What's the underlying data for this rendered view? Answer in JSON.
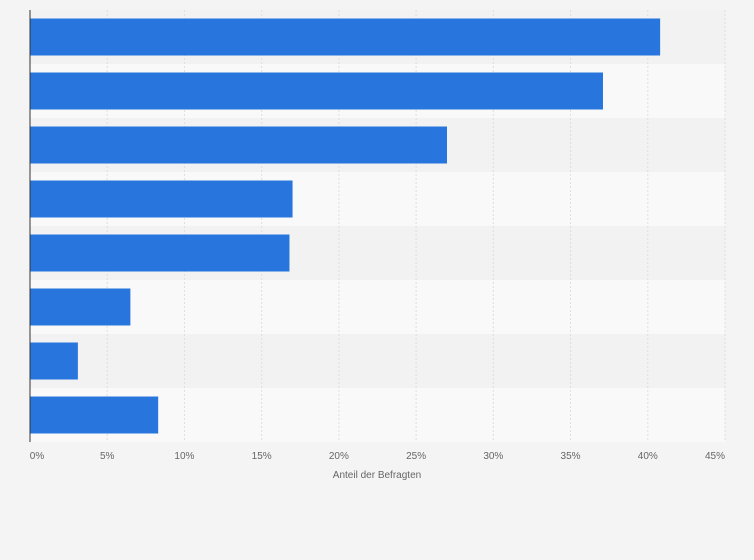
{
  "chart_data": {
    "type": "bar",
    "orientation": "horizontal",
    "categories": [
      "",
      "",
      "",
      "",
      "",
      "",
      "",
      ""
    ],
    "values": [
      40.8,
      37.1,
      27.0,
      17.0,
      16.8,
      6.5,
      3.1,
      8.3
    ],
    "xlabel": "Anteil der Befragten",
    "ylabel": "",
    "xlim": [
      0,
      45
    ],
    "ticks": [
      0,
      5,
      10,
      15,
      20,
      25,
      30,
      35,
      40,
      45
    ],
    "tick_labels": [
      "0%",
      "5%",
      "10%",
      "15%",
      "20%",
      "25%",
      "30%",
      "35%",
      "40%",
      "45%"
    ],
    "grid": true,
    "legend": "none",
    "colors": {
      "bar": "#2876dd",
      "background": "#f4f4f4",
      "band_light": "#f9f9f9",
      "band_dark": "#f2f2f2",
      "grid": "#dedede",
      "axis": "#333333",
      "text": "#666666"
    }
  }
}
